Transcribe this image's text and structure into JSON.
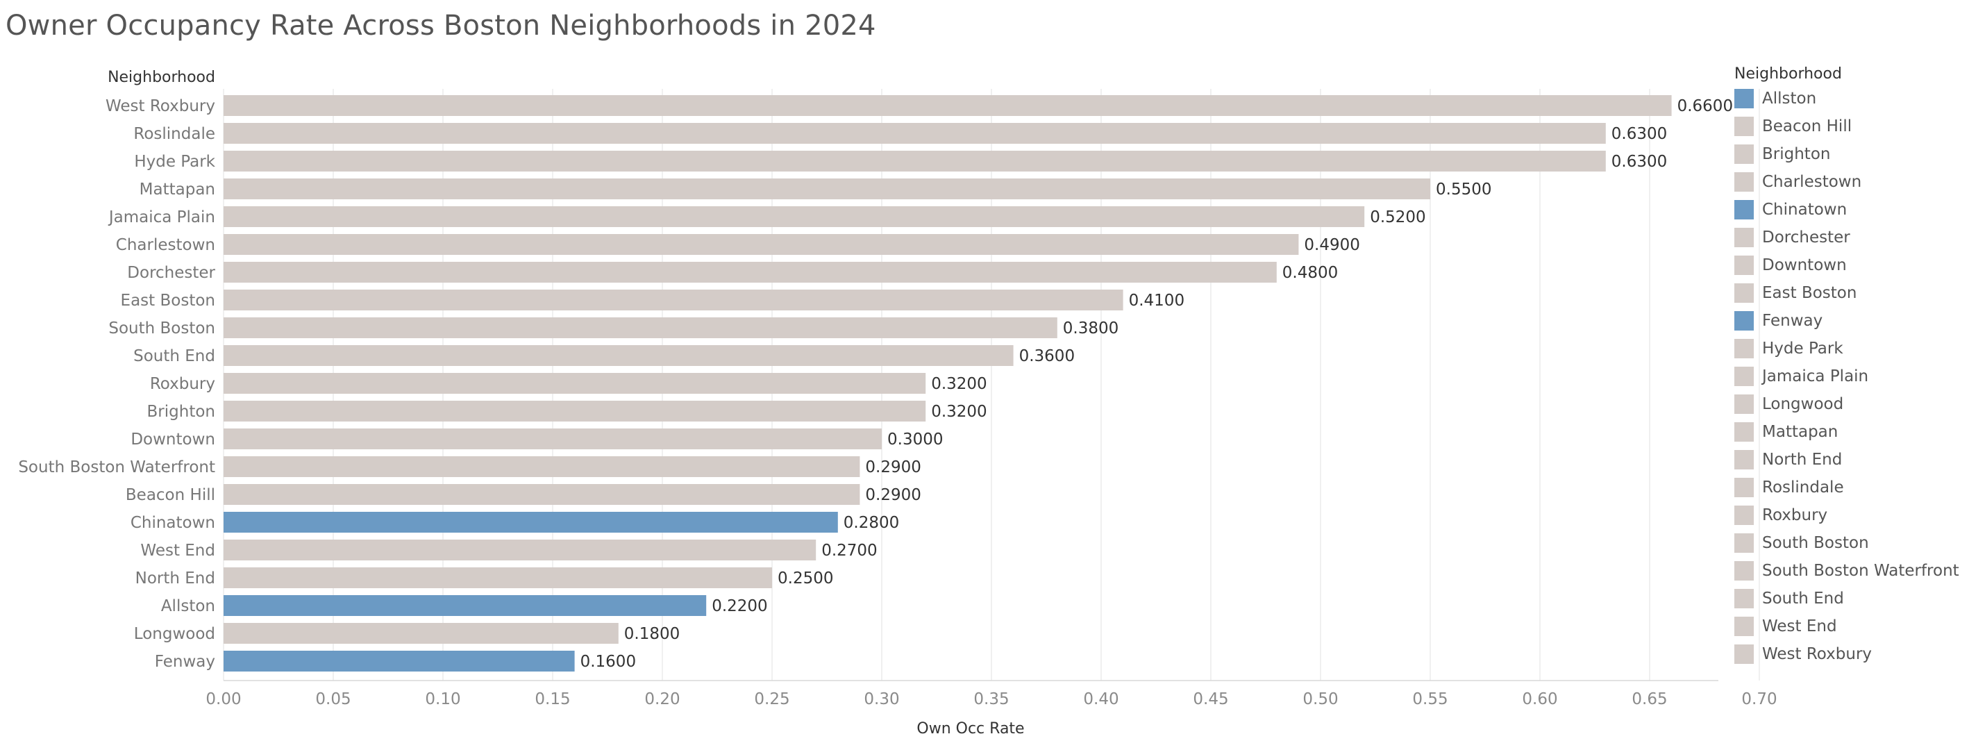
{
  "title": "Owner Occupancy Rate Across Boston Neighborhoods in 2024",
  "colors": {
    "highlight": "#6b9ac4",
    "default": "#d4ccc8",
    "grid": "#ececec",
    "axis_text": "#8a8a8a",
    "label_text": "#333333"
  },
  "chart_data": {
    "type": "bar",
    "orientation": "horizontal",
    "title": "Owner Occupancy Rate Across Boston Neighborhoods in 2024",
    "row_header": "Neighborhood",
    "xlabel": "Own Occ Rate",
    "xlim": [
      0,
      0.72
    ],
    "ticks": [
      "0.00",
      "0.05",
      "0.10",
      "0.15",
      "0.20",
      "0.25",
      "0.30",
      "0.35",
      "0.40",
      "0.45",
      "0.50",
      "0.55",
      "0.60",
      "0.65",
      "0.70"
    ],
    "tick_values": [
      0,
      0.05,
      0.1,
      0.15,
      0.2,
      0.25,
      0.3,
      0.35,
      0.4,
      0.45,
      0.5,
      0.55,
      0.6,
      0.65,
      0.7
    ],
    "grid": true,
    "categories": [
      "West Roxbury",
      "Roslindale",
      "Hyde Park",
      "Mattapan",
      "Jamaica Plain",
      "Charlestown",
      "Dorchester",
      "East Boston",
      "South Boston",
      "South End",
      "Roxbury",
      "Brighton",
      "Downtown",
      "South Boston Waterfront",
      "Beacon Hill",
      "Chinatown",
      "West End",
      "North End",
      "Allston",
      "Longwood",
      "Fenway"
    ],
    "values": [
      0.66,
      0.63,
      0.63,
      0.55,
      0.52,
      0.49,
      0.48,
      0.41,
      0.38,
      0.36,
      0.32,
      0.32,
      0.3,
      0.29,
      0.29,
      0.28,
      0.27,
      0.25,
      0.22,
      0.18,
      0.16
    ],
    "value_labels": [
      "0.6600",
      "0.6300",
      "0.6300",
      "0.5500",
      "0.5200",
      "0.4900",
      "0.4800",
      "0.4100",
      "0.3800",
      "0.3600",
      "0.3200",
      "0.3200",
      "0.3000",
      "0.2900",
      "0.2900",
      "0.2800",
      "0.2700",
      "0.2500",
      "0.2200",
      "0.1800",
      "0.1600"
    ],
    "highlighted": [
      "Allston",
      "Chinatown",
      "Fenway"
    ]
  },
  "legend": {
    "title": "Neighborhood",
    "items": [
      {
        "label": "Allston",
        "highlight": true
      },
      {
        "label": "Beacon Hill",
        "highlight": false
      },
      {
        "label": "Brighton",
        "highlight": false
      },
      {
        "label": "Charlestown",
        "highlight": false
      },
      {
        "label": "Chinatown",
        "highlight": true
      },
      {
        "label": "Dorchester",
        "highlight": false
      },
      {
        "label": "Downtown",
        "highlight": false
      },
      {
        "label": "East Boston",
        "highlight": false
      },
      {
        "label": "Fenway",
        "highlight": true
      },
      {
        "label": "Hyde Park",
        "highlight": false
      },
      {
        "label": "Jamaica Plain",
        "highlight": false
      },
      {
        "label": "Longwood",
        "highlight": false
      },
      {
        "label": "Mattapan",
        "highlight": false
      },
      {
        "label": "North End",
        "highlight": false
      },
      {
        "label": "Roslindale",
        "highlight": false
      },
      {
        "label": "Roxbury",
        "highlight": false
      },
      {
        "label": "South Boston",
        "highlight": false
      },
      {
        "label": "South Boston Waterfront",
        "highlight": false
      },
      {
        "label": "South End",
        "highlight": false
      },
      {
        "label": "West End",
        "highlight": false
      },
      {
        "label": "West Roxbury",
        "highlight": false
      }
    ]
  }
}
